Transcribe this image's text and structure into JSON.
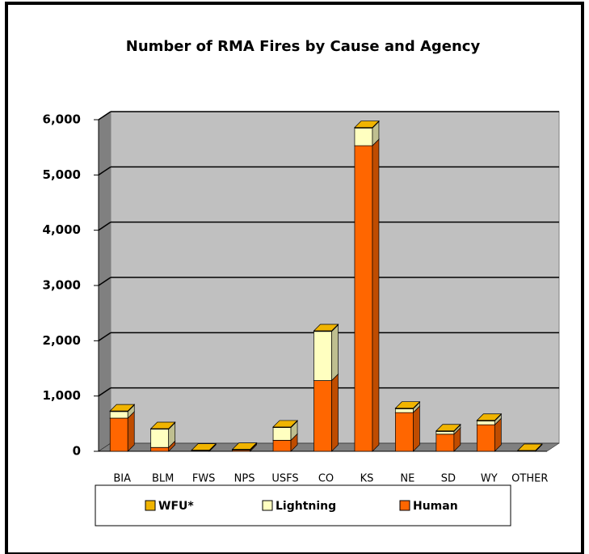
{
  "chart_data": {
    "type": "bar",
    "stacked": true,
    "title": "Number of RMA Fires by Cause and Agency",
    "categories": [
      "BIA",
      "BLM",
      "FWS",
      "NPS",
      "USFS",
      "CO",
      "KS",
      "NE",
      "SD",
      "WY",
      "OTHER"
    ],
    "series": [
      {
        "name": "WFU*",
        "color": "#f0b400",
        "values": [
          10,
          10,
          5,
          5,
          10,
          10,
          10,
          10,
          10,
          10,
          5
        ]
      },
      {
        "name": "Lightning",
        "color": "#ffffc0",
        "values": [
          120,
          330,
          5,
          10,
          230,
          890,
          320,
          70,
          50,
          70,
          5
        ]
      },
      {
        "name": "Human",
        "color": "#ff6600",
        "values": [
          600,
          70,
          10,
          20,
          200,
          1280,
          5530,
          700,
          310,
          480,
          5
        ]
      }
    ],
    "ylim": [
      0,
      6000
    ],
    "yticks": [
      0,
      {
        "value": 1000,
        "label": "1,000"
      },
      {
        "value": 2000,
        "label": "2,000"
      },
      {
        "value": 3000,
        "label": "3,000"
      },
      {
        "value": 4000,
        "label": "4,000"
      },
      {
        "value": 5000,
        "label": "5,000"
      },
      {
        "value": 6000,
        "label": "6,000"
      }
    ],
    "grid": true,
    "legend": "bottom"
  }
}
